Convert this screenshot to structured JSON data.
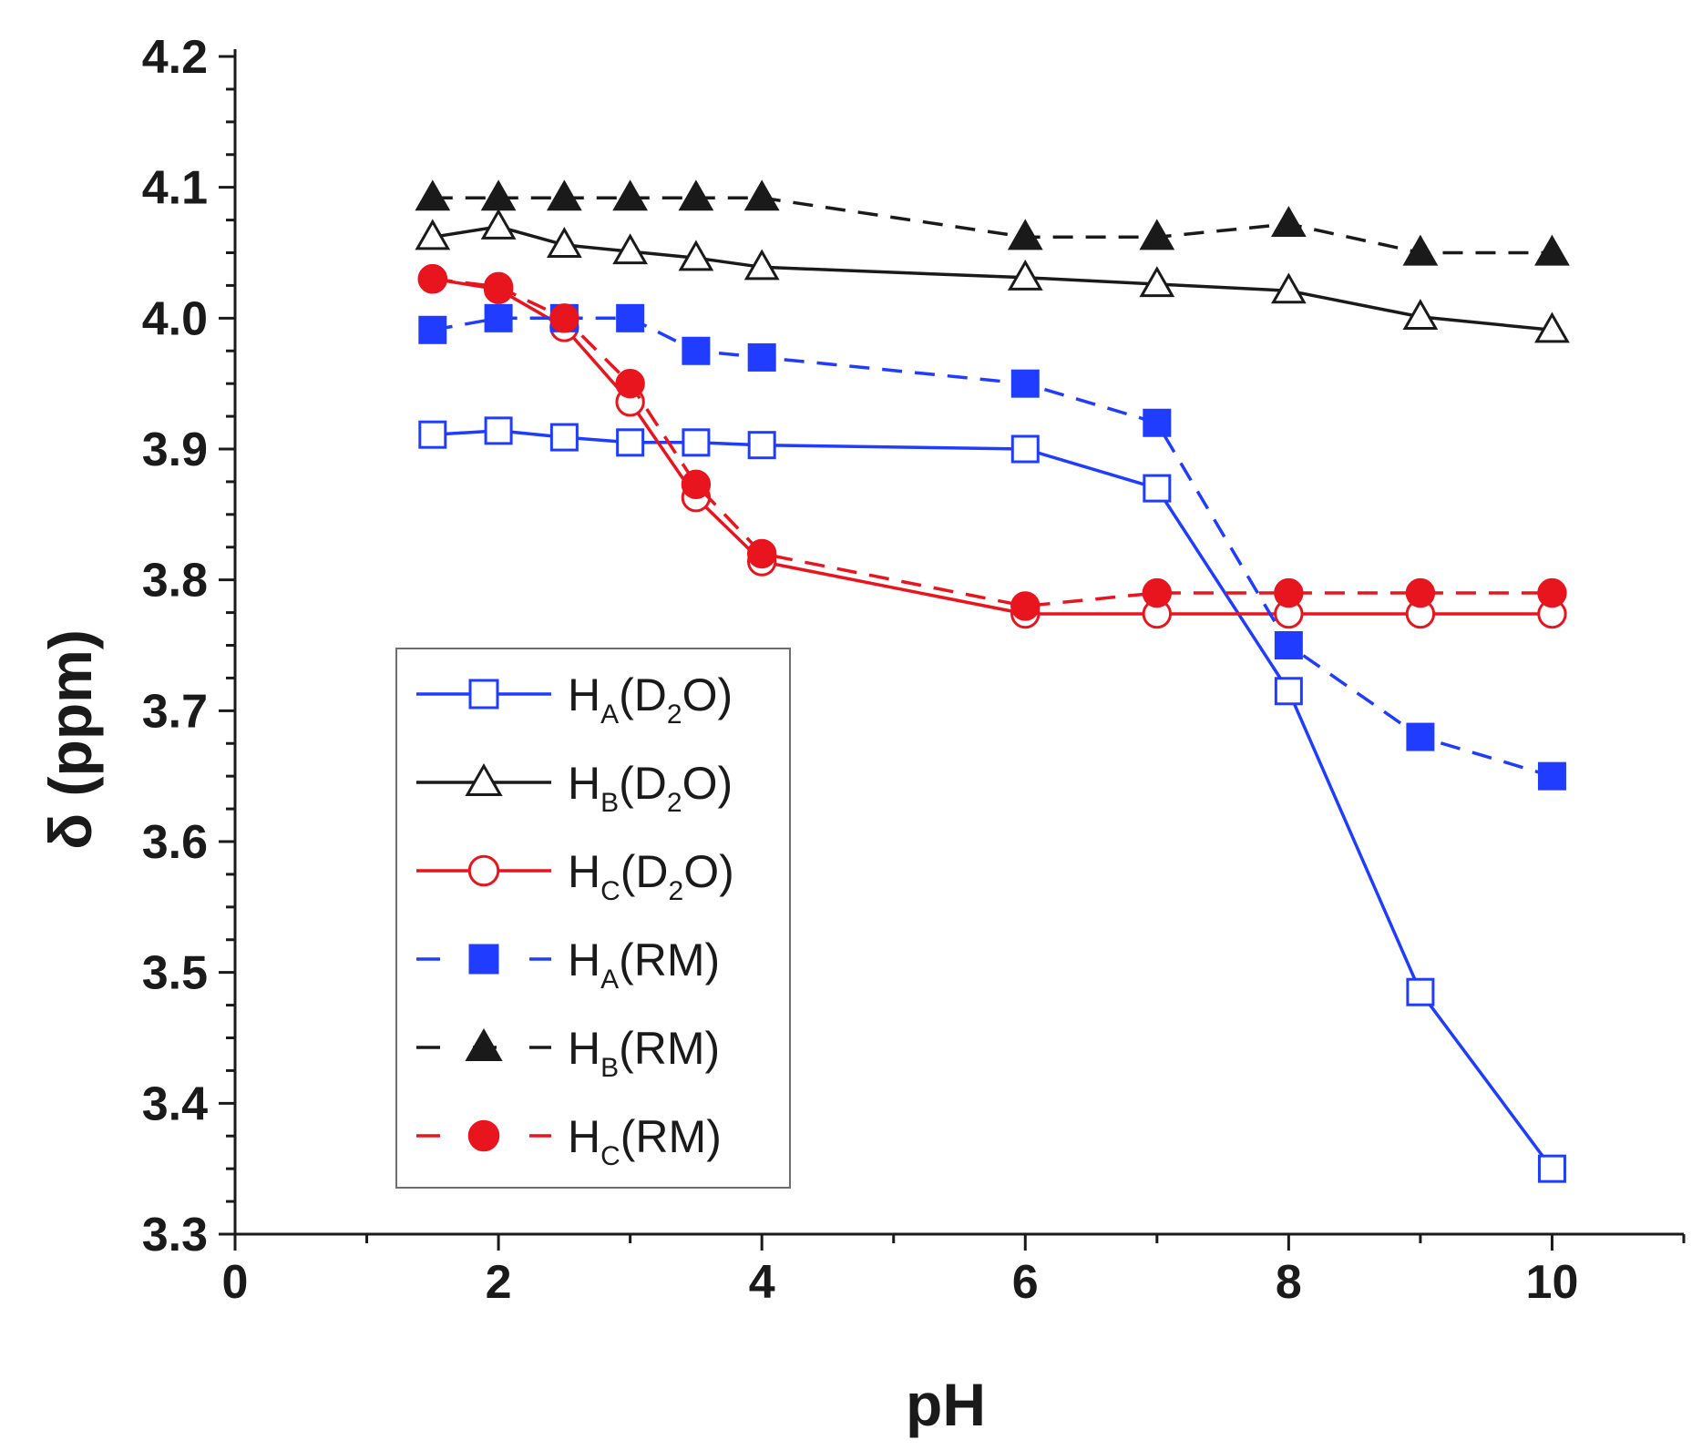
{
  "chart_data": {
    "type": "line",
    "title": "",
    "xlabel": "pH",
    "ylabel": "δ (ppm)",
    "xlim": [
      0,
      11
    ],
    "ylim": [
      3.3,
      4.2
    ],
    "x_ticks": [
      "0",
      "2",
      "4",
      "6",
      "8",
      "10"
    ],
    "y_ticks": [
      "3.3",
      "3.4",
      "3.5",
      "3.6",
      "3.7",
      "3.8",
      "3.9",
      "4.0",
      "4.1",
      "4.2"
    ],
    "grid": false,
    "legend_position": "lower-left",
    "series": [
      {
        "id": "ha-d2o",
        "name": "HA(D2O)",
        "main": "H",
        "sub": "A",
        "suffix_pre": "(D",
        "suffix_sub": "2",
        "suffix_post": "O)",
        "color": "#1f3cff",
        "marker": "square",
        "filled": false,
        "dashed": false,
        "x": [
          1.5,
          2,
          2.5,
          3,
          3.5,
          4,
          6,
          7,
          8,
          9,
          10
        ],
        "y": [
          3.911,
          3.914,
          3.909,
          3.905,
          3.905,
          3.903,
          3.9,
          3.87,
          3.715,
          3.485,
          3.35
        ]
      },
      {
        "id": "hb-d2o",
        "name": "HB(D2O)",
        "main": "H",
        "sub": "B",
        "suffix_pre": "(D",
        "suffix_sub": "2",
        "suffix_post": "O)",
        "color": "#1a1a1a",
        "marker": "triangle",
        "filled": false,
        "dashed": false,
        "x": [
          1.5,
          2,
          2.5,
          3,
          3.5,
          4,
          6,
          7,
          8,
          9,
          10
        ],
        "y": [
          4.062,
          4.07,
          4.056,
          4.051,
          4.046,
          4.039,
          4.031,
          4.026,
          4.021,
          4.001,
          3.991
        ]
      },
      {
        "id": "hc-d2o",
        "name": "HC(D2O)",
        "main": "H",
        "sub": "C",
        "suffix_pre": "(D",
        "suffix_sub": "2",
        "suffix_post": "O)",
        "color": "#e8141e",
        "marker": "circle",
        "filled": false,
        "dashed": false,
        "x": [
          1.5,
          2,
          2.5,
          3,
          3.5,
          4,
          6,
          7,
          8,
          9,
          10
        ],
        "y": [
          4.03,
          4.022,
          3.993,
          3.936,
          3.863,
          3.814,
          3.774,
          3.774,
          3.774,
          3.774,
          3.774
        ]
      },
      {
        "id": "ha-rm",
        "name": "HA(RM)",
        "main": "H",
        "sub": "A",
        "suffix_pre": "(RM)",
        "suffix_sub": "",
        "suffix_post": "",
        "color": "#1f3cff",
        "marker": "square",
        "filled": true,
        "dashed": true,
        "x": [
          1.5,
          2,
          2.5,
          3,
          3.5,
          4,
          6,
          7,
          8,
          9,
          10
        ],
        "y": [
          3.991,
          4.0,
          4.0,
          4.0,
          3.975,
          3.97,
          3.95,
          3.92,
          3.75,
          3.68,
          3.65
        ]
      },
      {
        "id": "hb-rm",
        "name": "HB(RM)",
        "main": "H",
        "sub": "B",
        "suffix_pre": "(RM)",
        "suffix_sub": "",
        "suffix_post": "",
        "color": "#1a1a1a",
        "marker": "triangle",
        "filled": true,
        "dashed": true,
        "x": [
          1.5,
          2,
          2.5,
          3,
          3.5,
          4,
          6,
          7,
          8,
          9,
          10
        ],
        "y": [
          4.092,
          4.092,
          4.092,
          4.092,
          4.092,
          4.092,
          4.062,
          4.062,
          4.072,
          4.05,
          4.05
        ]
      },
      {
        "id": "hc-rm",
        "name": "HC(RM)",
        "main": "H",
        "sub": "C",
        "suffix_pre": "(RM)",
        "suffix_sub": "",
        "suffix_post": "",
        "color": "#e8141e",
        "marker": "circle",
        "filled": true,
        "dashed": true,
        "x": [
          1.5,
          2,
          2.5,
          3,
          3.5,
          4,
          6,
          7,
          8,
          9,
          10
        ],
        "y": [
          4.03,
          4.024,
          4.0,
          3.95,
          3.873,
          3.82,
          3.78,
          3.79,
          3.79,
          3.79,
          3.79
        ]
      }
    ]
  }
}
